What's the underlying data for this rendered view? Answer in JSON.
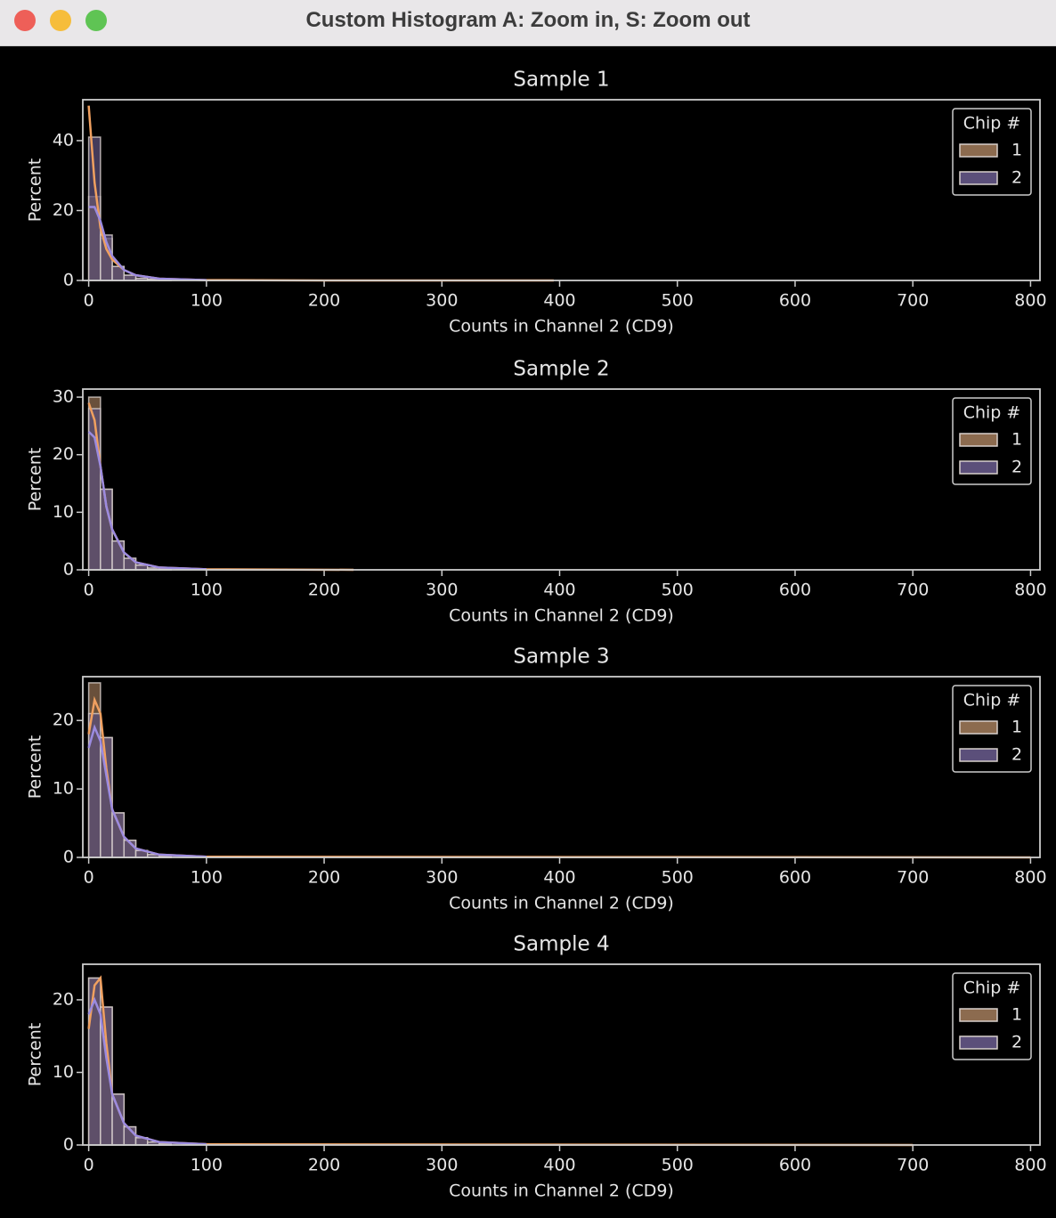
{
  "window": {
    "title": "Custom Histogram A: Zoom in, S: Zoom out"
  },
  "chart_data": [
    {
      "type": "histogram",
      "title": "Sample 1",
      "xlabel": "Counts in Channel 2 (CD9)",
      "ylabel": "Percent",
      "bins": [
        0,
        10,
        20,
        30,
        40,
        50,
        60,
        70
      ],
      "xlim": [
        -5,
        808
      ],
      "ylim": [
        0,
        51.7
      ],
      "xticks": [
        0,
        100,
        200,
        300,
        400,
        500,
        600,
        700,
        800
      ],
      "yticks": [
        0,
        20,
        40
      ],
      "legend_title": "Chip #",
      "legend": "upper right",
      "series": [
        {
          "name": "1",
          "color": "#8c6b4f",
          "line_color": "#f0a060",
          "values": [
            24,
            12,
            4,
            1.5,
            0.6,
            0.3,
            0.1
          ],
          "kde_x": [
            0,
            5,
            10,
            15,
            20,
            30,
            40,
            60,
            100,
            200,
            395
          ],
          "kde": [
            50,
            28,
            15,
            9,
            6,
            3,
            1.5,
            0.5,
            0.1,
            0,
            0
          ]
        },
        {
          "name": "2",
          "color": "#5b4f7a",
          "line_color": "#9b8be0",
          "values": [
            41,
            13,
            4,
            1.5,
            0.6,
            0.3,
            0.1
          ],
          "kde_x": [
            0,
            5,
            10,
            15,
            20,
            30,
            40,
            60,
            100
          ],
          "kde": [
            21,
            21,
            17,
            11,
            7,
            3,
            1.5,
            0.5,
            0.1
          ]
        }
      ]
    },
    {
      "type": "histogram",
      "title": "Sample 2",
      "xlabel": "Counts in Channel 2 (CD9)",
      "ylabel": "Percent",
      "bins": [
        0,
        10,
        20,
        30,
        40,
        50,
        60,
        70
      ],
      "xlim": [
        -5,
        808
      ],
      "ylim": [
        0,
        31.4
      ],
      "xticks": [
        0,
        100,
        200,
        300,
        400,
        500,
        600,
        700,
        800
      ],
      "yticks": [
        0,
        10,
        20,
        30
      ],
      "legend_title": "Chip #",
      "legend": "upper right",
      "series": [
        {
          "name": "1",
          "color": "#8c6b4f",
          "line_color": "#f0a060",
          "values": [
            30,
            14,
            5,
            2,
            0.8,
            0.3,
            0.1
          ],
          "kde_x": [
            0,
            5,
            10,
            15,
            20,
            30,
            40,
            60,
            100,
            225
          ],
          "kde": [
            29,
            26,
            18,
            11,
            7,
            3,
            1.3,
            0.4,
            0.1,
            0
          ]
        },
        {
          "name": "2",
          "color": "#5b4f7a",
          "line_color": "#9b8be0",
          "values": [
            28,
            14,
            5,
            2,
            0.8,
            0.3,
            0.1
          ],
          "kde_x": [
            0,
            5,
            10,
            15,
            20,
            30,
            40,
            60,
            100
          ],
          "kde": [
            24,
            23,
            18,
            11,
            7,
            3,
            1.3,
            0.4,
            0.1
          ]
        }
      ]
    },
    {
      "type": "histogram",
      "title": "Sample 3",
      "xlabel": "Counts in Channel 2 (CD9)",
      "ylabel": "Percent",
      "bins": [
        0,
        10,
        20,
        30,
        40,
        50,
        60,
        70
      ],
      "xlim": [
        -5,
        808
      ],
      "ylim": [
        0,
        26.4
      ],
      "xticks": [
        0,
        100,
        200,
        300,
        400,
        500,
        600,
        700,
        800
      ],
      "yticks": [
        0,
        10,
        20
      ],
      "legend_title": "Chip #",
      "legend": "upper right",
      "series": [
        {
          "name": "1",
          "color": "#8c6b4f",
          "line_color": "#f0a060",
          "values": [
            25.5,
            17.5,
            6.5,
            2.5,
            1,
            0.4,
            0.2
          ],
          "kde_x": [
            0,
            5,
            10,
            15,
            20,
            30,
            40,
            60,
            100,
            800
          ],
          "kde": [
            18,
            23,
            21,
            13,
            7,
            3,
            1.3,
            0.4,
            0.1,
            0
          ]
        },
        {
          "name": "2",
          "color": "#5b4f7a",
          "line_color": "#9b8be0",
          "values": [
            21,
            17.5,
            6.5,
            2.5,
            1,
            0.4,
            0.2
          ],
          "kde_x": [
            0,
            5,
            10,
            15,
            20,
            30,
            40,
            60,
            100
          ],
          "kde": [
            16,
            19,
            17,
            12,
            7,
            3,
            1.3,
            0.4,
            0.1
          ]
        }
      ]
    },
    {
      "type": "histogram",
      "title": "Sample 4",
      "xlabel": "Counts in Channel 2 (CD9)",
      "ylabel": "Percent",
      "bins": [
        0,
        10,
        20,
        30,
        40,
        50,
        60,
        70
      ],
      "xlim": [
        -5,
        808
      ],
      "ylim": [
        0,
        24.9
      ],
      "xticks": [
        0,
        100,
        200,
        300,
        400,
        500,
        600,
        700,
        800
      ],
      "yticks": [
        0,
        10,
        20
      ],
      "legend_title": "Chip #",
      "legend": "upper right",
      "series": [
        {
          "name": "1",
          "color": "#8c6b4f",
          "line_color": "#f0a060",
          "values": [
            23,
            19,
            7,
            2.5,
            1,
            0.4,
            0.2
          ],
          "kde_x": [
            0,
            5,
            10,
            15,
            20,
            30,
            40,
            60,
            100,
            700
          ],
          "kde": [
            16,
            22,
            23,
            14,
            7,
            3,
            1.3,
            0.4,
            0.1,
            0
          ]
        },
        {
          "name": "2",
          "color": "#5b4f7a",
          "line_color": "#9b8be0",
          "values": [
            23,
            19,
            7,
            2.5,
            1,
            0.4,
            0.2
          ],
          "kde_x": [
            0,
            5,
            10,
            15,
            20,
            30,
            40,
            60,
            100
          ],
          "kde": [
            18,
            20,
            18,
            12,
            7,
            3,
            1.3,
            0.4,
            0.1
          ]
        }
      ]
    }
  ]
}
